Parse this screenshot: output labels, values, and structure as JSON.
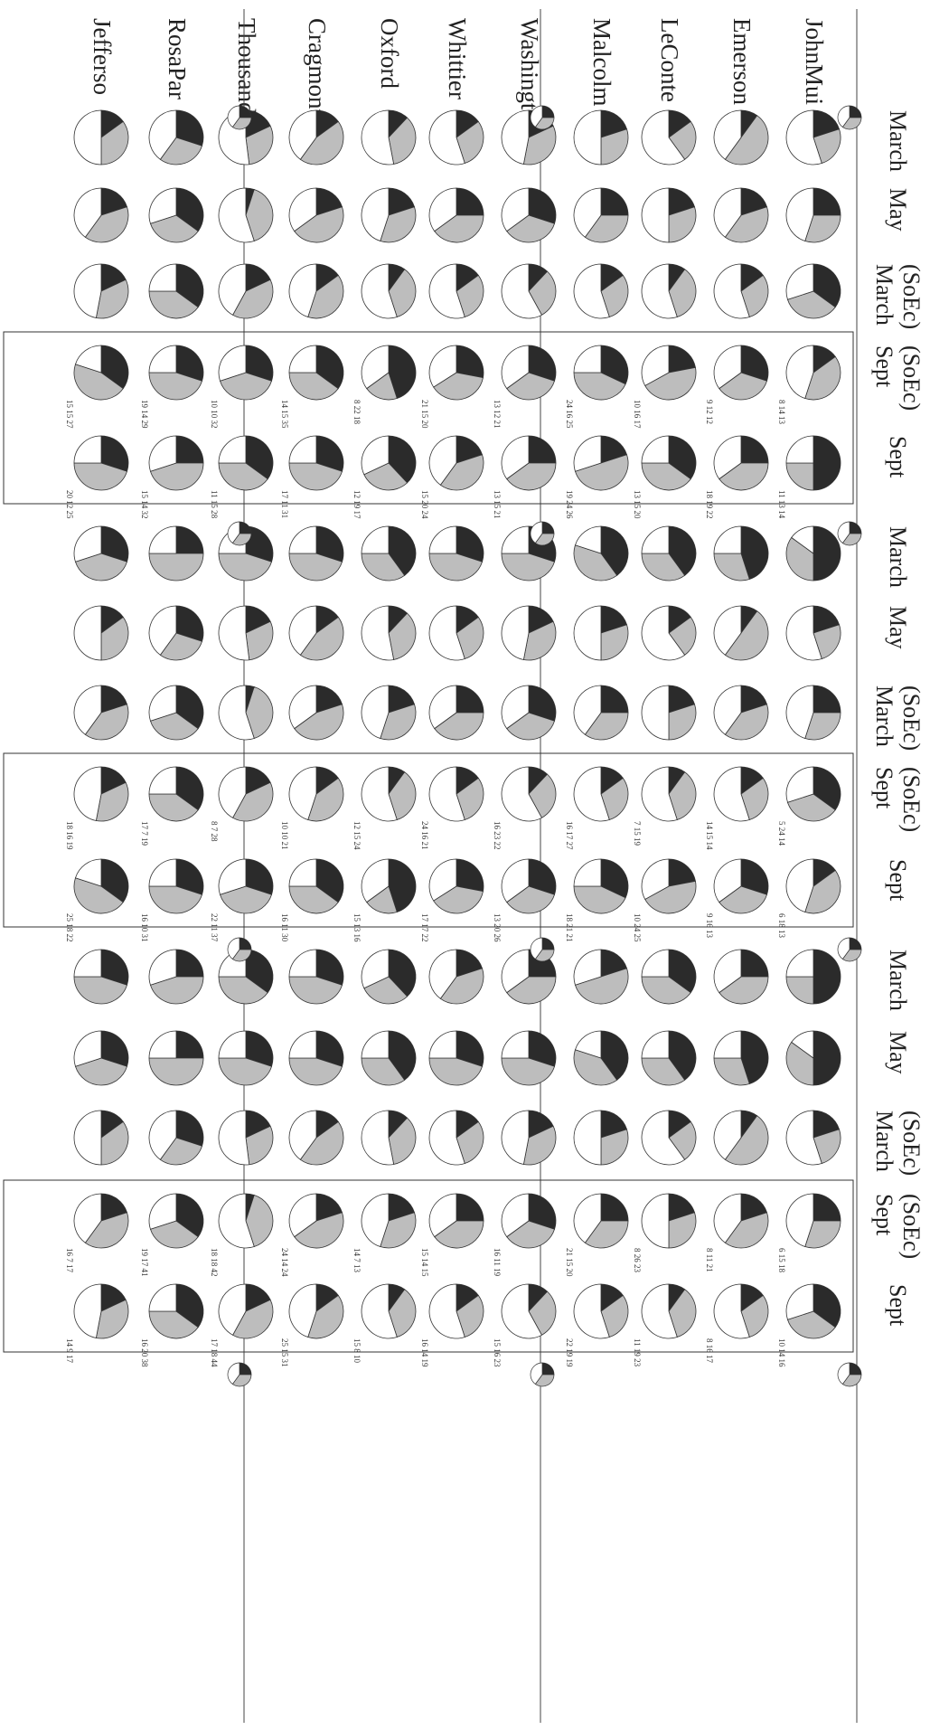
{
  "chart_data": {
    "type": "pie-matrix",
    "schools": [
      "JohnMui",
      "Emerson",
      "LeConte",
      "Malcolm",
      "Washingt",
      "Whittier",
      "Oxford",
      "Cragmont",
      "Thousand",
      "RosaPar",
      "Jefferso"
    ],
    "columns": [
      {
        "label": "March",
        "line1": "",
        "line2": "March"
      },
      {
        "label": "May",
        "line1": "",
        "line2": "May"
      },
      {
        "label": "(SoEc) March",
        "line1": "(SoEc)",
        "line2": "March"
      },
      {
        "label": "(SoEc) Sept",
        "line1": "(SoEc)",
        "line2": "Sept"
      },
      {
        "label": "Sept",
        "line1": "",
        "line2": "Sept"
      },
      {
        "label": "March",
        "line1": "",
        "line2": "March"
      },
      {
        "label": "May",
        "line1": "",
        "line2": "May"
      },
      {
        "label": "(SoEc) March",
        "line1": "(SoEc)",
        "line2": "March"
      },
      {
        "label": "(SoEc) Sept",
        "line1": "(SoEc)",
        "line2": "Sept"
      },
      {
        "label": "Sept",
        "line1": "",
        "line2": "Sept"
      },
      {
        "label": "March",
        "line1": "",
        "line2": "March"
      },
      {
        "label": "May",
        "line1": "",
        "line2": "May"
      },
      {
        "label": "(SoEc) March",
        "line1": "(SoEc)",
        "line2": "March"
      },
      {
        "label": "(SoEc) Sept",
        "line1": "(SoEc)",
        "line2": "Sept"
      },
      {
        "label": "Sept",
        "line1": "",
        "line2": "Sept"
      }
    ],
    "segment_colors": {
      "dark": "#2b2b2b",
      "light": "#bdbdbd",
      "white": "#ffffff"
    },
    "pies": [
      [
        [
          0.2,
          0.25,
          0.55
        ],
        [
          0.25,
          0.3,
          0.45
        ],
        [
          0.35,
          0.35,
          0.3
        ],
        [
          0.15,
          0.4,
          0.45
        ],
        [
          0.5,
          0.25,
          0.25
        ],
        [
          0.5,
          0.35,
          0.15
        ]
      ],
      [
        [
          0.1,
          0.5,
          0.4
        ],
        [
          0.2,
          0.4,
          0.4
        ],
        [
          0.15,
          0.3,
          0.55
        ],
        [
          0.3,
          0.35,
          0.35
        ],
        [
          0.25,
          0.4,
          0.35
        ],
        [
          0.45,
          0.3,
          0.25
        ]
      ],
      [
        [
          0.15,
          0.25,
          0.6
        ],
        [
          0.2,
          0.3,
          0.5
        ],
        [
          0.1,
          0.35,
          0.55
        ],
        [
          0.22,
          0.45,
          0.33
        ],
        [
          0.35,
          0.4,
          0.25
        ],
        [
          0.4,
          0.35,
          0.25
        ]
      ],
      [
        [
          0.2,
          0.3,
          0.5
        ],
        [
          0.25,
          0.35,
          0.4
        ],
        [
          0.15,
          0.3,
          0.55
        ],
        [
          0.32,
          0.43,
          0.25
        ],
        [
          0.2,
          0.5,
          0.3
        ],
        [
          0.4,
          0.4,
          0.2
        ]
      ],
      [
        [
          0.18,
          0.35,
          0.47
        ],
        [
          0.3,
          0.35,
          0.35
        ],
        [
          0.12,
          0.3,
          0.58
        ],
        [
          0.3,
          0.35,
          0.35
        ],
        [
          0.25,
          0.4,
          0.35
        ],
        [
          0.3,
          0.45,
          0.25
        ]
      ],
      [
        [
          0.15,
          0.3,
          0.55
        ],
        [
          0.25,
          0.4,
          0.35
        ],
        [
          0.15,
          0.3,
          0.55
        ],
        [
          0.28,
          0.38,
          0.34
        ],
        [
          0.2,
          0.4,
          0.4
        ],
        [
          0.3,
          0.45,
          0.25
        ]
      ],
      [
        [
          0.12,
          0.35,
          0.53
        ],
        [
          0.2,
          0.35,
          0.45
        ],
        [
          0.1,
          0.35,
          0.55
        ],
        [
          0.45,
          0.2,
          0.35
        ],
        [
          0.38,
          0.3,
          0.32
        ],
        [
          0.4,
          0.35,
          0.25
        ]
      ],
      [
        [
          0.15,
          0.45,
          0.4
        ],
        [
          0.2,
          0.45,
          0.35
        ],
        [
          0.15,
          0.4,
          0.45
        ],
        [
          0.35,
          0.4,
          0.25
        ],
        [
          0.3,
          0.45,
          0.25
        ],
        [
          0.3,
          0.45,
          0.25
        ]
      ],
      [
        [
          0.18,
          0.3,
          0.52
        ],
        [
          0.05,
          0.4,
          0.55
        ],
        [
          0.18,
          0.4,
          0.42
        ],
        [
          0.3,
          0.4,
          0.3
        ],
        [
          0.35,
          0.4,
          0.25
        ],
        [
          0.3,
          0.45,
          0.25
        ]
      ],
      [
        [
          0.3,
          0.3,
          0.4
        ],
        [
          0.35,
          0.35,
          0.3
        ],
        [
          0.35,
          0.4,
          0.25
        ],
        [
          0.3,
          0.45,
          0.25
        ],
        [
          0.25,
          0.45,
          0.3
        ],
        [
          0.25,
          0.5,
          0.25
        ]
      ],
      [
        [
          0.15,
          0.35,
          0.5
        ],
        [
          0.2,
          0.4,
          0.4
        ],
        [
          0.18,
          0.35,
          0.47
        ],
        [
          0.35,
          0.45,
          0.2
        ],
        [
          0.3,
          0.45,
          0.25
        ],
        [
          0.3,
          0.4,
          0.3
        ]
      ]
    ],
    "counts": {
      "JohnMui": {
        "(SoEc) Sept": "8 14 13",
        "Sept": "11 13 14",
        "(SoEc) Sept b": "5 24 14",
        "Sept b": "6 18 13",
        "(SoEc) Sept c": "6 15 18",
        "Sept c": "10 14 16"
      },
      "Emerson": {
        "(SoEc) Sept": "9 12 12",
        "Sept": "18 19 22",
        "(SoEc) Sept b": "14 15 14",
        "Sept b": "9 16 13",
        "(SoEc) Sept c": "8 11 21",
        "Sept c": "8 16 17"
      },
      "LeConte": {
        "(SoEc) Sept": "10 16 17",
        "Sept": "13 15 20",
        "(SoEc) Sept b": "7 15 19",
        "Sept b": "10 24 25",
        "(SoEc) Sept c": "8 26 23",
        "Sept c": "11 19 23"
      },
      "Malcolm": {
        "(SoEc) Sept": "24 16 25",
        "Sept": "19 24 26",
        "(SoEc) Sept b": "16 17 27",
        "Sept b": "18 21 21",
        "(SoEc) Sept c": "21 15 20",
        "Sept c": "22 19 19"
      },
      "Washingt": {
        "(SoEc) Sept": "13 12 21",
        "Sept": "13 15 21",
        "(SoEc) Sept b": "16 23 22",
        "Sept b": "13 20 26",
        "(SoEc) Sept c": "16 11 19",
        "Sept c": "15 16 23"
      },
      "Whittier": {
        "(SoEc) Sept": "21 15 20",
        "Sept": "15 20 24",
        "(SoEc) Sept b": "24 16 21",
        "Sept b": "17 17 22",
        "(SoEc) Sept c": "15 14 15",
        "Sept c": "16 14 19"
      },
      "Oxford": {
        "(SoEc) Sept": "8 22 18",
        "Sept": "12 19 17",
        "(SoEc) Sept b": "12 15 24",
        "Sept b": "15 13 16",
        "(SoEc) Sept c": "14 7 13",
        "Sept c": "15 8 10"
      },
      "Cragmont": {
        "(SoEc) Sept": "14 15 35",
        "Sept": "17 11 31",
        "(SoEc) Sept b": "10 10 21",
        "Sept b": "16 11 30",
        "(SoEc) Sept c": "24 14 24",
        "Sept c": "25 15 31"
      },
      "Thousand": {
        "(SoEc) Sept": "10 10 32",
        "Sept": "11 15 28",
        "(SoEc) Sept b": "8 7 28",
        "Sept b": "22 11 37",
        "(SoEc) Sept c": "18 18 42",
        "Sept c": "17 18 44"
      },
      "RosaPar": {
        "(SoEc) Sept": "19 14 29",
        "Sept": "15 14 32",
        "(SoEc) Sept b": "17 7 19",
        "Sept b": "16 10 31",
        "(SoEc) Sept c": "19 17 41",
        "Sept c": "16 20 38"
      },
      "Jefferso": {
        "(SoEc) Sept": "15 15 27",
        "Sept": "20 12 25",
        "(SoEc) Sept b": "18 16 19",
        "Sept b": "25 18 22",
        "(SoEc) Sept c": "16 7 17",
        "Sept c": "14 9 17"
      }
    },
    "legend_mini_pies": [
      {
        "group": "March",
        "school_row": 0
      },
      {
        "group": "March",
        "school_row": 4
      },
      {
        "group": "March",
        "school_row": 8
      }
    ]
  }
}
